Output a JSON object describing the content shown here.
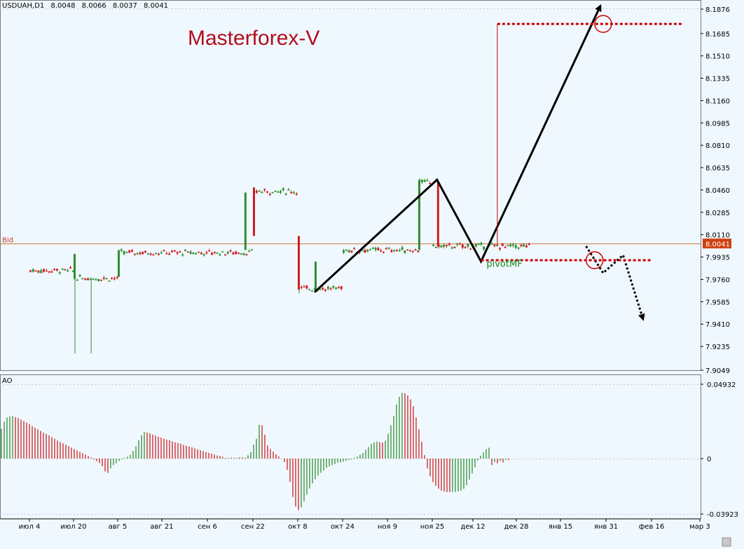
{
  "header": {
    "symbol": "USDUAH,D1",
    "open": "8.0048",
    "high": "8.0066",
    "low": "8.0037",
    "close": "8.0041"
  },
  "watermark": "Masterforex-V",
  "bid": {
    "label": "Bid",
    "value_label": "8.0041",
    "value": 8.0041
  },
  "pivot_label": "pivotMF",
  "colors": {
    "background": "#f0f8ff",
    "bull": "#2f8f2f",
    "bear": "#cc1f1f",
    "bid_line": "#d07030",
    "annotation": "#000000",
    "level_dotted": "#cc0000",
    "circle": "#cc0000",
    "watermark": "#b10e1c",
    "ao_up": "#2f8f2f",
    "ao_down": "#cc1f1f"
  },
  "chart_data": [
    {
      "type": "candlestick",
      "symbol": "USDUAH",
      "timeframe": "D1",
      "y_ticks": [
        "8.1876",
        "8.1685",
        "8.1510",
        "8.1335",
        "8.1160",
        "8.0985",
        "8.0810",
        "8.0635",
        "8.0460",
        "8.0285",
        "8.0110",
        "7.9935",
        "7.9760",
        "7.9585",
        "7.9410",
        "7.9235",
        "7.9049"
      ],
      "ylim": [
        7.9049,
        8.1876
      ],
      "x_ticks": [
        "июл 4",
        "июл 20",
        "авг 5",
        "авг 21",
        "сен 6",
        "сен 22",
        "окт 8",
        "окт 24",
        "ноя 9",
        "ноя 25",
        "дек 12",
        "дек 28",
        "янв 15",
        "янв 31",
        "фев 16",
        "мар 3"
      ],
      "price_segments": [
        {
          "from": "июл 4",
          "to": "июл 20",
          "level": 7.983
        },
        {
          "from": "июл 20",
          "to": "авг 5",
          "level": 7.977,
          "min_low": 7.918
        },
        {
          "from": "авг 5",
          "to": "сен 22",
          "level": 7.997
        },
        {
          "from": "сен 22",
          "to": "окт 8",
          "level": 8.045,
          "spike_high": 8.048
        },
        {
          "from": "сен 22",
          "to": "окт 8",
          "level": 8.01
        },
        {
          "from": "окт 8",
          "to": "окт 24",
          "level": 7.969,
          "min_low": 7.965
        },
        {
          "from": "окт 24",
          "to": "ноя 20",
          "level": 7.999
        },
        {
          "from": "ноя 20",
          "to": "ноя 25",
          "level": 8.052,
          "max_high": 8.055
        },
        {
          "from": "ноя 25",
          "to": "янв 3",
          "level": 8.002
        }
      ],
      "last_close": 8.0041,
      "annotations": [
        {
          "kind": "arrow-line",
          "points": [
            [
              "окт 14",
              7.966
            ],
            [
              "ноя 27",
              8.054
            ],
            [
              "дек 15",
              7.99
            ],
            [
              "янв 29",
              8.19
            ]
          ]
        },
        {
          "kind": "dotted-arrow",
          "points": [
            [
              "янв 24",
              8.002
            ],
            [
              "янв 30",
              7.981
            ],
            [
              "фев 6",
              7.995
            ],
            [
              "фев 13",
              7.945
            ]
          ]
        },
        {
          "kind": "level",
          "style": "dotted",
          "value": 8.176,
          "from": "дек 21",
          "to": "фев 26"
        },
        {
          "kind": "level",
          "style": "dotted",
          "value": 7.991,
          "from": "дек 15",
          "to": "фев 16"
        },
        {
          "kind": "vertical-line",
          "date": "дек 21",
          "from_value": 8.002,
          "to_value": 8.176
        },
        {
          "kind": "circle",
          "at": [
            "янв 30",
            8.176
          ]
        },
        {
          "kind": "circle",
          "at": [
            "янв 27",
            7.991
          ]
        },
        {
          "kind": "text",
          "value": "pivotMF",
          "at": [
            "дек 17",
            7.986
          ]
        }
      ]
    },
    {
      "type": "bar",
      "indicator": "AO",
      "y_ticks": [
        "0.04932",
        "0",
        "-0.03923"
      ],
      "ylim": [
        -0.03923,
        0.04932
      ],
      "values": [
        0.0198,
        0.0245,
        0.0272,
        0.028,
        0.0282,
        0.0274,
        0.0269,
        0.0259,
        0.0249,
        0.0238,
        0.0229,
        0.0215,
        0.0205,
        0.0194,
        0.0184,
        0.0171,
        0.0163,
        0.0153,
        0.0142,
        0.0132,
        0.0119,
        0.011,
        0.0101,
        0.0092,
        0.0083,
        0.0073,
        0.0064,
        0.0054,
        0.0045,
        0.0035,
        0.0027,
        0.0017,
        0.0007,
        -0.0006,
        -0.0019,
        -0.0032,
        -0.0055,
        -0.0091,
        -0.0102,
        -0.0069,
        -0.0046,
        -0.0034,
        -0.0017,
        -0.0006,
        0.0005,
        0.0012,
        0.0025,
        0.005,
        0.0082,
        0.0121,
        0.0155,
        0.0177,
        0.0172,
        0.0167,
        0.0159,
        0.0153,
        0.0144,
        0.0139,
        0.0132,
        0.0126,
        0.0122,
        0.0114,
        0.0108,
        0.0103,
        0.0098,
        0.0091,
        0.0085,
        0.008,
        0.0074,
        0.0068,
        0.0061,
        0.0055,
        0.005,
        0.0044,
        0.0038,
        0.0033,
        0.0027,
        0.002,
        0.0016,
        0.0011,
        0.0005,
        0.0004,
        0.0008,
        0.0005,
        0.0004,
        0.0009,
        0.0007,
        0.0006,
        0.0022,
        0.0043,
        0.0092,
        0.0131,
        0.0224,
        0.0221,
        0.0158,
        0.0086,
        0.0063,
        0.0046,
        0.0029,
        0.0013,
        -0.0002,
        -0.0025,
        -0.008,
        -0.0165,
        -0.0272,
        -0.0339,
        -0.0364,
        -0.0346,
        -0.0303,
        -0.0254,
        -0.0212,
        -0.0176,
        -0.0147,
        -0.0121,
        -0.0101,
        -0.0084,
        -0.0066,
        -0.0055,
        -0.0047,
        -0.0039,
        -0.0029,
        -0.0027,
        -0.0022,
        -0.0015,
        -0.0009,
        -0.0007,
        0.0005,
        0.0013,
        0.0026,
        0.0037,
        0.0058,
        0.0077,
        0.0098,
        0.0107,
        0.0114,
        0.0108,
        0.0106,
        0.0118,
        0.0165,
        0.0221,
        0.0282,
        0.0359,
        0.041,
        0.0436,
        0.0433,
        0.0418,
        0.0392,
        0.0347,
        0.0273,
        0.0194,
        0.0111,
        0.0023,
        -0.007,
        -0.0126,
        -0.0166,
        -0.0193,
        -0.0214,
        -0.0226,
        -0.0233,
        -0.0237,
        -0.0238,
        -0.0237,
        -0.0237,
        -0.0233,
        -0.0227,
        -0.0214,
        -0.0188,
        -0.0149,
        -0.0106,
        -0.0062,
        -0.0013,
        0.0019,
        0.0041,
        0.0063,
        0.0072,
        -0.0046,
        -0.0025,
        -0.0034,
        -0.0018,
        -0.0027,
        -0.0009,
        -0.0011
      ]
    }
  ],
  "ao_panel": {
    "title": "AO"
  }
}
